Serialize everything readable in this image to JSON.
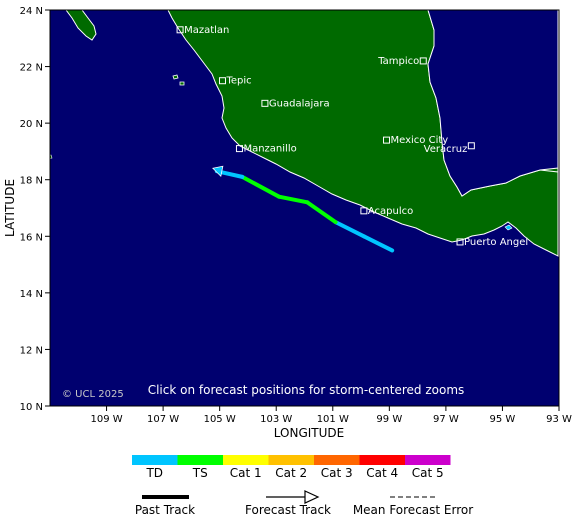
{
  "map": {
    "xlabel": "LONGITUDE",
    "ylabel": "LATITUDE",
    "lon_range": [
      -111,
      -93
    ],
    "lat_range": [
      10,
      24
    ],
    "x_ticks": [
      {
        "value": -109,
        "label": "109 W"
      },
      {
        "value": -107,
        "label": "107 W"
      },
      {
        "value": -105,
        "label": "105 W"
      },
      {
        "value": -103,
        "label": "103 W"
      },
      {
        "value": -101,
        "label": "101 W"
      },
      {
        "value": -99,
        "label": "99 W"
      },
      {
        "value": -97,
        "label": "97 W"
      },
      {
        "value": -95,
        "label": "95 W"
      },
      {
        "value": -93,
        "label": "93 W"
      }
    ],
    "y_ticks": [
      {
        "value": 24,
        "label": "24 N"
      },
      {
        "value": 22,
        "label": "22 N"
      },
      {
        "value": 20,
        "label": "20 N"
      },
      {
        "value": 18,
        "label": "18 N"
      },
      {
        "value": 16,
        "label": "16 N"
      },
      {
        "value": 14,
        "label": "14 N"
      },
      {
        "value": 12,
        "label": "12 N"
      },
      {
        "value": 10,
        "label": "10 N"
      }
    ],
    "cities": [
      {
        "name": "Mazatlan",
        "lon": -106.4,
        "lat": 23.3
      },
      {
        "name": "Tepic",
        "lon": -104.9,
        "lat": 21.5
      },
      {
        "name": "Tampico",
        "lon": -97.8,
        "lat": 22.2
      },
      {
        "name": "Guadalajara",
        "lon": -103.4,
        "lat": 20.7
      },
      {
        "name": "Mexico City",
        "lon": -99.1,
        "lat": 19.4
      },
      {
        "name": "Veracruz",
        "lon": -96.1,
        "lat": 19.2
      },
      {
        "name": "Manzanillo",
        "lon": -104.3,
        "lat": 19.1
      },
      {
        "name": "Acapulco",
        "lon": -99.9,
        "lat": 16.9
      },
      {
        "name": "Puerto Angel",
        "lon": -96.5,
        "lat": 15.8
      }
    ],
    "track": [
      {
        "lon": -98.9,
        "lat": 15.5,
        "category": "TD"
      },
      {
        "lon": -99.9,
        "lat": 16.0,
        "category": "TD"
      },
      {
        "lon": -100.9,
        "lat": 16.5,
        "category": "TD"
      },
      {
        "lon": -101.9,
        "lat": 17.2,
        "category": "TS"
      },
      {
        "lon": -102.9,
        "lat": 17.4,
        "category": "TS"
      },
      {
        "lon": -104.2,
        "lat": 18.1,
        "category": "TS"
      },
      {
        "lon": -105.1,
        "lat": 18.3,
        "category": "TD"
      }
    ],
    "copyright": "© UCL 2025",
    "hint": "Click on forecast positions for storm-centered zooms",
    "colors": {
      "ocean": "#00006f",
      "land": "#006a00",
      "coast": "#ffffff",
      "border": "#000000"
    }
  },
  "legend": {
    "categories": [
      {
        "label": "TD",
        "color": "#00c5ff"
      },
      {
        "label": "TS",
        "color": "#00ff00"
      },
      {
        "label": "Cat 1",
        "color": "#ffff00"
      },
      {
        "label": "Cat 2",
        "color": "#ffc100"
      },
      {
        "label": "Cat 3",
        "color": "#ff6600"
      },
      {
        "label": "Cat 4",
        "color": "#ff0000"
      },
      {
        "label": "Cat 5",
        "color": "#cc00cc"
      }
    ],
    "past_track": "Past Track",
    "forecast_track": "Forecast Track",
    "mean_error": "Mean Forecast Error"
  }
}
